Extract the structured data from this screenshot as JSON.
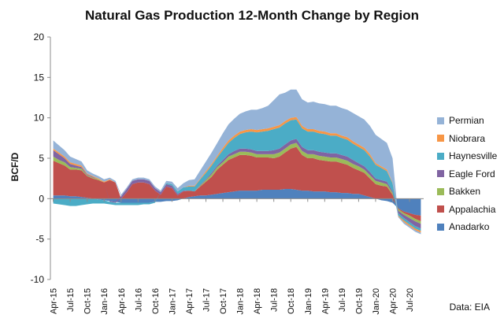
{
  "chart_data": {
    "type": "area",
    "title": "Natural Gas Production 12-Month Change by Region",
    "ylabel": "BCF/D",
    "ylim": [
      -10,
      20
    ],
    "yticks": [
      -10,
      -5,
      0,
      5,
      10,
      15,
      20
    ],
    "x_tick_labels": [
      "Apr-15",
      "Jul-15",
      "Oct-15",
      "Jan-16",
      "Apr-16",
      "Jul-16",
      "Oct-16",
      "Jan-17",
      "Apr-17",
      "Jul-17",
      "Oct-17",
      "Jan-18",
      "Apr-18",
      "Jul-18",
      "Oct-18",
      "Jan-19",
      "Apr-19",
      "Jul-19",
      "Oct-19",
      "Jan-20",
      "Apr-20",
      "Jul-20"
    ],
    "source": "Data: EIA",
    "legend_position": "right",
    "grid": false,
    "x": [
      "Apr-15",
      "May-15",
      "Jun-15",
      "Jul-15",
      "Aug-15",
      "Sep-15",
      "Oct-15",
      "Nov-15",
      "Dec-15",
      "Jan-16",
      "Feb-16",
      "Mar-16",
      "Apr-16",
      "May-16",
      "Jun-16",
      "Jul-16",
      "Aug-16",
      "Sep-16",
      "Oct-16",
      "Nov-16",
      "Dec-16",
      "Jan-17",
      "Feb-17",
      "Mar-17",
      "Apr-17",
      "May-17",
      "Jun-17",
      "Jul-17",
      "Aug-17",
      "Sep-17",
      "Oct-17",
      "Nov-17",
      "Dec-17",
      "Jan-18",
      "Feb-18",
      "Mar-18",
      "Apr-18",
      "May-18",
      "Jun-18",
      "Jul-18",
      "Aug-18",
      "Sep-18",
      "Oct-18",
      "Nov-18",
      "Dec-18",
      "Jan-19",
      "Feb-19",
      "Mar-19",
      "Apr-19",
      "May-19",
      "Jun-19",
      "Jul-19",
      "Aug-19",
      "Sep-19",
      "Oct-19",
      "Nov-19",
      "Dec-19",
      "Jan-20",
      "Feb-20",
      "Mar-20",
      "Apr-20",
      "May-20",
      "Jun-20",
      "Jul-20",
      "Aug-20",
      "Sep-20"
    ],
    "series": [
      {
        "name": "Anadarko",
        "color": "#4f81bd",
        "values": [
          0.4,
          0.4,
          0.4,
          0.3,
          0.3,
          0.2,
          0.1,
          0.0,
          -0.1,
          -0.2,
          -0.3,
          -0.4,
          -0.5,
          -0.5,
          -0.5,
          -0.5,
          -0.5,
          -0.5,
          -0.4,
          -0.4,
          -0.3,
          -0.3,
          -0.2,
          0.0,
          0.2,
          0.3,
          0.4,
          0.4,
          0.5,
          0.6,
          0.7,
          0.8,
          0.9,
          1.0,
          1.0,
          1.0,
          1.0,
          1.1,
          1.1,
          1.1,
          1.1,
          1.2,
          1.2,
          1.1,
          1.0,
          1.0,
          0.9,
          0.9,
          0.9,
          0.8,
          0.8,
          0.7,
          0.7,
          0.6,
          0.6,
          0.4,
          0.2,
          0.0,
          -0.2,
          -0.3,
          -0.5,
          -1.2,
          -1.6,
          -1.8,
          -2.0,
          -2.1
        ]
      },
      {
        "name": "Appalachia",
        "color": "#c0504d",
        "values": [
          4.3,
          4.0,
          3.7,
          3.3,
          3.3,
          3.3,
          2.7,
          2.5,
          2.3,
          2.0,
          2.3,
          2.0,
          0.0,
          0.8,
          1.8,
          2.0,
          2.0,
          1.8,
          1.0,
          0.5,
          1.5,
          1.3,
          0.4,
          0.9,
          0.8,
          0.6,
          1.1,
          1.7,
          2.2,
          3.0,
          3.5,
          4.0,
          4.2,
          4.4,
          4.4,
          4.3,
          4.1,
          4.0,
          4.0,
          3.9,
          4.1,
          4.5,
          5.0,
          5.3,
          4.4,
          4.0,
          4.1,
          3.9,
          3.8,
          3.8,
          3.8,
          3.7,
          3.5,
          3.2,
          2.9,
          2.8,
          2.3,
          1.8,
          1.6,
          1.5,
          0.5,
          -0.1,
          -0.2,
          -0.3,
          -0.5,
          -0.7
        ]
      },
      {
        "name": "Bakken",
        "color": "#9bbb59",
        "values": [
          0.5,
          0.4,
          0.4,
          0.3,
          0.2,
          0.2,
          0.1,
          0.1,
          0.1,
          0.0,
          0.0,
          0.0,
          0.0,
          0.0,
          0.0,
          0.0,
          0.0,
          0.0,
          0.0,
          0.0,
          0.0,
          0.0,
          0.0,
          0.0,
          0.0,
          0.0,
          0.1,
          0.2,
          0.3,
          0.3,
          0.3,
          0.4,
          0.4,
          0.4,
          0.4,
          0.4,
          0.4,
          0.4,
          0.4,
          0.5,
          0.5,
          0.5,
          0.5,
          0.5,
          0.5,
          0.5,
          0.5,
          0.5,
          0.5,
          0.5,
          0.5,
          0.5,
          0.5,
          0.5,
          0.5,
          0.4,
          0.4,
          0.4,
          0.4,
          0.3,
          0.2,
          -0.2,
          -0.2,
          -0.3,
          -0.3,
          -0.3
        ]
      },
      {
        "name": "Eagle Ford",
        "color": "#8064a2",
        "values": [
          0.8,
          0.7,
          0.5,
          0.4,
          0.3,
          0.2,
          0.1,
          0.1,
          0.0,
          0.0,
          -0.1,
          -0.1,
          0.3,
          0.4,
          0.4,
          0.4,
          0.4,
          0.4,
          0.3,
          0.3,
          0.3,
          0.3,
          0.2,
          0.1,
          0.0,
          0.0,
          0.1,
          0.1,
          0.2,
          0.2,
          0.3,
          0.3,
          0.4,
          0.4,
          0.4,
          0.4,
          0.4,
          0.4,
          0.4,
          0.5,
          0.5,
          0.5,
          0.5,
          0.5,
          0.5,
          0.5,
          0.5,
          0.5,
          0.5,
          0.5,
          0.5,
          0.5,
          0.5,
          0.5,
          0.4,
          0.4,
          0.4,
          0.3,
          0.3,
          0.3,
          0.2,
          -0.3,
          -0.4,
          -0.5,
          -0.6,
          -0.6
        ]
      },
      {
        "name": "Haynesville",
        "color": "#4bacc6",
        "values": [
          -0.6,
          -0.7,
          -0.8,
          -0.9,
          -0.9,
          -0.8,
          -0.7,
          -0.6,
          -0.5,
          -0.4,
          -0.3,
          -0.3,
          -0.3,
          -0.3,
          -0.3,
          -0.3,
          -0.2,
          -0.2,
          -0.1,
          0.0,
          0.1,
          0.2,
          0.3,
          0.4,
          0.5,
          0.6,
          0.7,
          0.8,
          0.9,
          1.0,
          1.2,
          1.4,
          1.6,
          1.8,
          2.0,
          2.2,
          2.3,
          2.4,
          2.5,
          2.6,
          2.6,
          2.6,
          2.5,
          2.4,
          2.3,
          2.3,
          2.3,
          2.3,
          2.3,
          2.2,
          2.2,
          2.1,
          2.1,
          2.0,
          2.0,
          2.0,
          1.9,
          1.7,
          1.5,
          1.3,
          1.0,
          -0.3,
          -0.3,
          -0.3,
          -0.3,
          -0.3
        ]
      },
      {
        "name": "Niobrara",
        "color": "#f79646",
        "values": [
          0.2,
          0.2,
          0.2,
          0.2,
          0.2,
          0.2,
          0.1,
          0.1,
          0.1,
          0.1,
          0.1,
          0.0,
          0.0,
          0.0,
          0.0,
          0.0,
          0.0,
          0.0,
          0.0,
          0.0,
          0.0,
          0.0,
          0.0,
          0.0,
          0.1,
          0.1,
          0.1,
          0.2,
          0.2,
          0.2,
          0.3,
          0.3,
          0.3,
          0.3,
          0.3,
          0.3,
          0.3,
          0.3,
          0.3,
          0.3,
          0.3,
          0.3,
          0.3,
          0.3,
          0.3,
          0.3,
          0.3,
          0.3,
          0.3,
          0.3,
          0.3,
          0.3,
          0.3,
          0.3,
          0.3,
          0.3,
          0.3,
          0.2,
          0.2,
          0.2,
          0.1,
          -0.1,
          -0.2,
          -0.2,
          -0.2,
          -0.2
        ]
      },
      {
        "name": "Permian",
        "color": "#95b3d7",
        "values": [
          1.0,
          0.9,
          0.8,
          0.7,
          0.6,
          0.5,
          0.4,
          0.3,
          0.3,
          0.3,
          0.2,
          0.2,
          0.2,
          0.2,
          0.2,
          0.2,
          0.2,
          0.2,
          0.2,
          0.2,
          0.3,
          0.3,
          0.4,
          0.5,
          0.7,
          0.8,
          1.0,
          1.2,
          1.4,
          1.6,
          1.8,
          2.0,
          2.1,
          2.2,
          2.3,
          2.4,
          2.5,
          2.6,
          2.8,
          3.3,
          3.8,
          3.5,
          3.5,
          3.4,
          3.3,
          3.3,
          3.4,
          3.4,
          3.4,
          3.4,
          3.4,
          3.4,
          3.4,
          3.5,
          3.5,
          3.5,
          3.5,
          3.5,
          3.4,
          3.3,
          3.0,
          -0.1,
          -0.2,
          -0.2,
          -0.2,
          -0.2
        ]
      }
    ]
  }
}
